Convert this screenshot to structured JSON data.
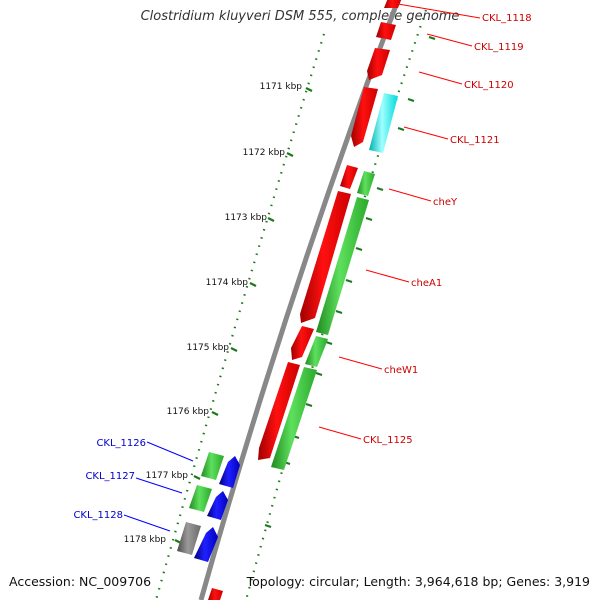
{
  "title": "Clostridium kluyveri DSM 555, complete genome",
  "footer": {
    "accession": "Accession: NC_009706",
    "summary": "Topology: circular; Length: 3,964,618 bp; Genes: 3,919"
  },
  "colors": {
    "red": "#ff0000",
    "green": "#33cc33",
    "blue": "#0000ff",
    "cyan": "#00ffff",
    "gray": "#808080",
    "backbone": "#888888",
    "tick": "#1b7a1b",
    "red_label": "#cc0000",
    "blue_label": "#0000cc"
  },
  "scale_labels": [
    "1171 kbp",
    "1172 kbp",
    "1173 kbp",
    "1174 kbp",
    "1175 kbp",
    "1176 kbp",
    "1177 kbp",
    "1178 kbp"
  ],
  "gene_labels": [
    {
      "text": "CKL_1118",
      "color": "red"
    },
    {
      "text": "CKL_1119",
      "color": "red"
    },
    {
      "text": "CKL_1120",
      "color": "red"
    },
    {
      "text": "CKL_1121",
      "color": "red"
    },
    {
      "text": "cheY",
      "color": "red"
    },
    {
      "text": "cheA1",
      "color": "red"
    },
    {
      "text": "cheW1",
      "color": "red"
    },
    {
      "text": "CKL_1125",
      "color": "red"
    },
    {
      "text": "CKL_1126",
      "color": "blue"
    },
    {
      "text": "CKL_1127",
      "color": "blue"
    },
    {
      "text": "CKL_1128",
      "color": "blue"
    }
  ]
}
